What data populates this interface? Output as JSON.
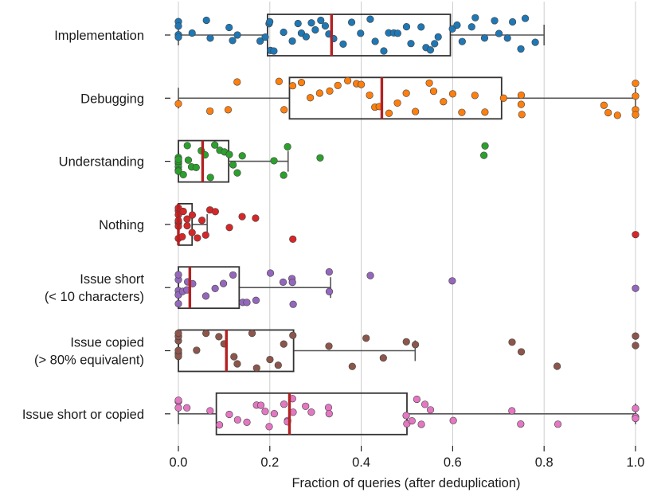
{
  "chart_data": {
    "type": "boxplot_strip",
    "orientation": "horizontal",
    "xlabel": "Fraction of queries (after deduplication)",
    "xlim": [
      0.0,
      1.0
    ],
    "xticks": [
      0.0,
      0.2,
      0.4,
      0.6,
      0.8,
      1.0
    ],
    "xtick_labels": [
      "0.0",
      "0.2",
      "0.4",
      "0.6",
      "0.8",
      "1.0"
    ],
    "grid": "vertical",
    "median_color": "#b22222",
    "categories": [
      {
        "label_lines": [
          "Implementation"
        ],
        "color": "#1f77b4",
        "box": {
          "q1": 0.195,
          "median": 0.335,
          "q3": 0.595,
          "whisker_low": 0.0,
          "whisker_high": 0.8
        },
        "points": [
          0.0,
          0.0,
          0.0,
          0.0,
          0.03,
          0.06,
          0.07,
          0.11,
          0.12,
          0.13,
          0.18,
          0.19,
          0.2,
          0.2,
          0.2,
          0.21,
          0.23,
          0.25,
          0.26,
          0.27,
          0.28,
          0.29,
          0.3,
          0.31,
          0.32,
          0.33,
          0.34,
          0.36,
          0.38,
          0.4,
          0.42,
          0.43,
          0.45,
          0.46,
          0.47,
          0.48,
          0.5,
          0.51,
          0.53,
          0.54,
          0.55,
          0.56,
          0.57,
          0.6,
          0.61,
          0.62,
          0.64,
          0.65,
          0.67,
          0.69,
          0.7,
          0.72,
          0.73,
          0.75,
          0.76,
          0.78
        ]
      },
      {
        "label_lines": [
          "Debugging"
        ],
        "color": "#ff7f0e",
        "box": {
          "q1": 0.243,
          "median": 0.445,
          "q3": 0.707,
          "whisker_low": 0.0,
          "whisker_high": 1.0
        },
        "points": [
          0.0,
          0.07,
          0.11,
          0.13,
          0.22,
          0.23,
          0.25,
          0.27,
          0.29,
          0.31,
          0.33,
          0.35,
          0.37,
          0.39,
          0.4,
          0.42,
          0.43,
          0.44,
          0.46,
          0.48,
          0.5,
          0.52,
          0.55,
          0.56,
          0.58,
          0.6,
          0.62,
          0.65,
          0.67,
          0.71,
          0.75,
          0.75,
          0.75,
          0.93,
          0.94,
          0.96,
          1.0,
          1.0,
          1.0,
          1.0
        ]
      },
      {
        "label_lines": [
          "Understanding"
        ],
        "color": "#2ca02c",
        "box": {
          "q1": 0.0,
          "median": 0.053,
          "q3": 0.11,
          "whisker_low": 0.0,
          "whisker_high": 0.24
        },
        "points": [
          0.0,
          0.0,
          0.0,
          0.0,
          0.0,
          0.0,
          0.0,
          0.01,
          0.02,
          0.02,
          0.03,
          0.04,
          0.05,
          0.06,
          0.07,
          0.08,
          0.09,
          0.1,
          0.11,
          0.12,
          0.13,
          0.14,
          0.23,
          0.24,
          0.21,
          0.31,
          0.67,
          0.67
        ]
      },
      {
        "label_lines": [
          "Nothing"
        ],
        "color": "#d62728",
        "box": {
          "q1": 0.0,
          "median": 0.0,
          "q3": 0.03,
          "whisker_low": 0.0,
          "whisker_high": 0.063
        },
        "points": [
          0.0,
          0.0,
          0.0,
          0.0,
          0.0,
          0.0,
          0.0,
          0.0,
          0.01,
          0.01,
          0.02,
          0.02,
          0.03,
          0.03,
          0.04,
          0.05,
          0.06,
          0.07,
          0.08,
          0.11,
          0.14,
          0.17,
          0.25,
          1.0
        ]
      },
      {
        "label_lines": [
          "Issue short",
          "(< 10 characters)"
        ],
        "color": "#9467bd",
        "box": {
          "q1": 0.0,
          "median": 0.025,
          "q3": 0.133,
          "whisker_low": 0.0,
          "whisker_high": 0.333
        },
        "points": [
          0.0,
          0.0,
          0.0,
          0.0,
          0.0,
          0.0,
          0.01,
          0.02,
          0.02,
          0.03,
          0.06,
          0.08,
          0.1,
          0.12,
          0.14,
          0.15,
          0.17,
          0.2,
          0.23,
          0.25,
          0.25,
          0.25,
          0.33,
          0.33,
          0.42,
          0.6,
          1.0
        ]
      },
      {
        "label_lines": [
          "Issue copied",
          "(> 80% equivalent)"
        ],
        "color": "#8c564b",
        "box": {
          "q1": 0.0,
          "median": 0.105,
          "q3": 0.252,
          "whisker_low": 0.0,
          "whisker_high": 0.518
        },
        "points": [
          0.0,
          0.0,
          0.0,
          0.0,
          0.0,
          0.0,
          0.0,
          0.04,
          0.06,
          0.09,
          0.1,
          0.12,
          0.13,
          0.16,
          0.17,
          0.2,
          0.22,
          0.23,
          0.25,
          0.33,
          0.38,
          0.41,
          0.45,
          0.5,
          0.52,
          0.73,
          0.75,
          0.83,
          1.0,
          1.0
        ]
      },
      {
        "label_lines": [
          "Issue short or copied"
        ],
        "color": "#e377c2",
        "box": {
          "q1": 0.083,
          "median": 0.243,
          "q3": 0.5,
          "whisker_low": 0.0,
          "whisker_high": 1.0
        },
        "points": [
          0.0,
          0.0,
          0.0,
          0.0,
          0.02,
          0.07,
          0.09,
          0.11,
          0.13,
          0.15,
          0.17,
          0.18,
          0.19,
          0.2,
          0.21,
          0.23,
          0.24,
          0.24,
          0.25,
          0.25,
          0.28,
          0.29,
          0.33,
          0.33,
          0.5,
          0.5,
          0.51,
          0.52,
          0.53,
          0.54,
          0.55,
          0.6,
          0.73,
          0.75,
          0.83,
          1.0,
          1.0,
          1.0
        ]
      }
    ]
  }
}
